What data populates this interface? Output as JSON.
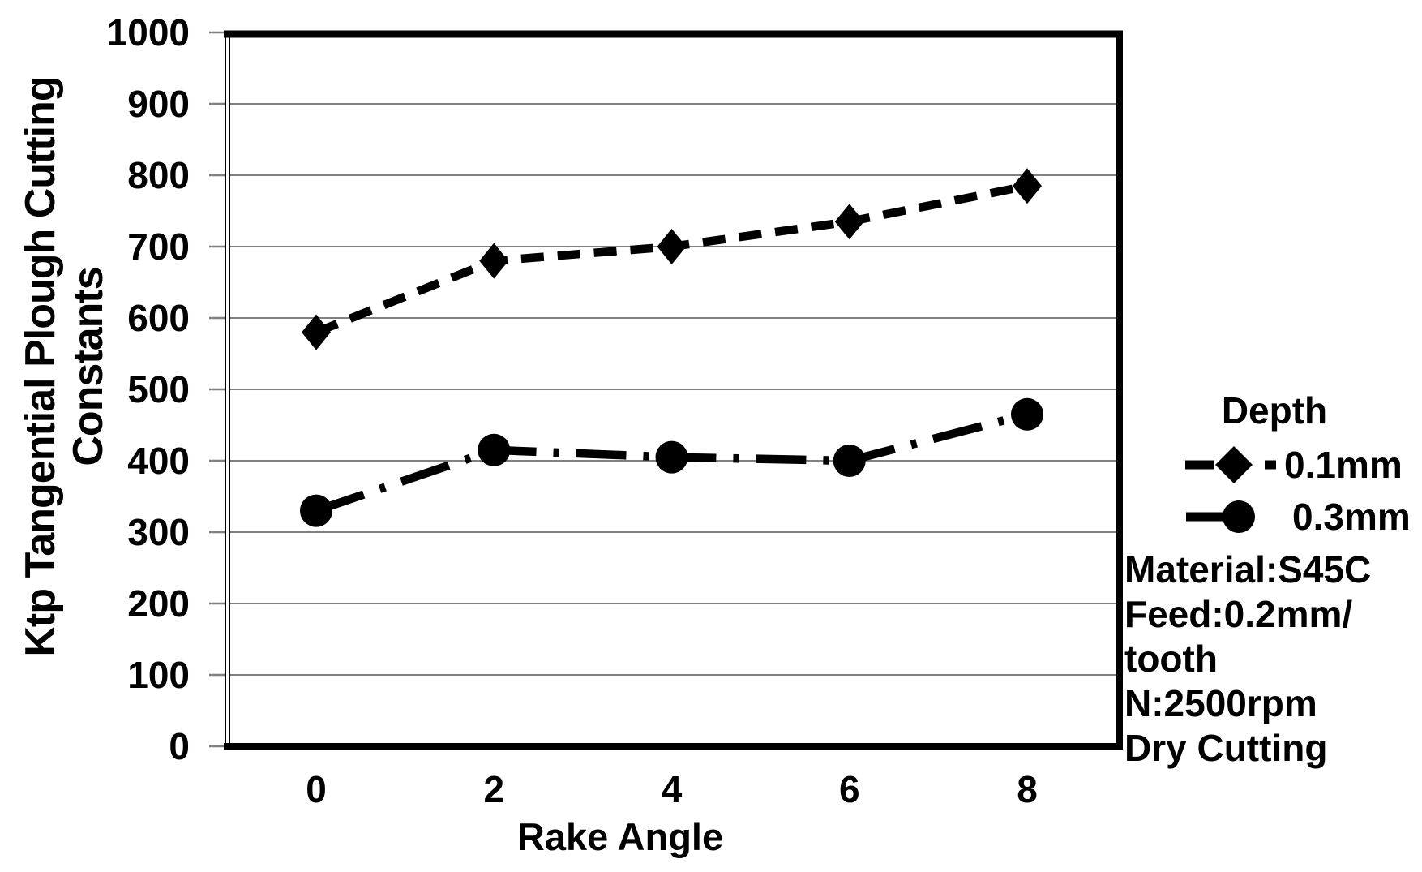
{
  "chart_data": {
    "type": "line",
    "title": "",
    "xlabel": "Rake Angle",
    "ylabel": "Ktp Tangential Plough Cutting Constants",
    "ylabel_lines": [
      "Ktp Tangential Plough Cutting",
      "Constants"
    ],
    "x": [
      0,
      2,
      4,
      6,
      8
    ],
    "xtick_labels": [
      "0",
      "2",
      "4",
      "6",
      "8"
    ],
    "ylim": [
      0,
      1000
    ],
    "ytick_step": 100,
    "ytick_labels": [
      "0",
      "100",
      "200",
      "300",
      "400",
      "500",
      "600",
      "700",
      "800",
      "900",
      "1000"
    ],
    "grid": true,
    "legend": {
      "title": "Depth",
      "position": "right"
    },
    "series": [
      {
        "name": "0.1mm",
        "line_style": "dashed",
        "marker": "diamond",
        "values": [
          580,
          680,
          700,
          735,
          785
        ]
      },
      {
        "name": "0.3mm",
        "line_style": "dash-dot",
        "marker": "circle",
        "values": [
          330,
          415,
          405,
          400,
          465
        ]
      }
    ],
    "annotation_lines": [
      "Material:S45C",
      "Feed:0.2mm/",
      "tooth",
      "N:2500rpm",
      "Dry Cutting"
    ],
    "colors": {
      "foreground": "#000000",
      "gridline": "#808080",
      "background": "#ffffff"
    }
  }
}
